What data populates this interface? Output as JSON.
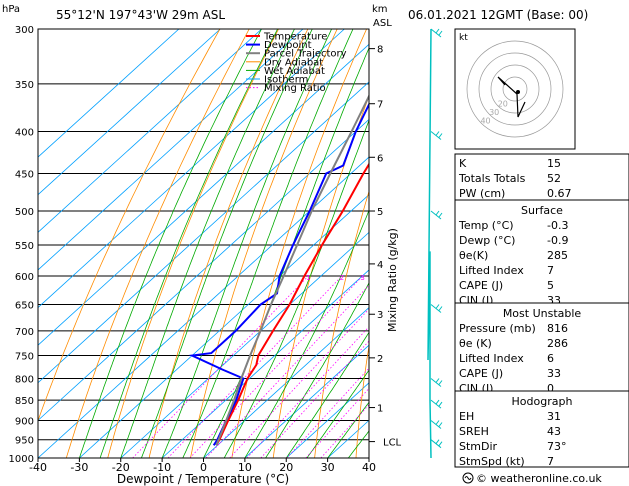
{
  "header": {
    "location": "55°12'N  197°43'W  29m  ASL",
    "hpa_label": "hPa",
    "km_label": "km",
    "asl_label": "ASL",
    "datetime": "06.01.2021  12GMT  (Base: 00)",
    "footer": "© weatheronline.co.uk"
  },
  "colors": {
    "temperature": "#ff0000",
    "dewpoint": "#0000ff",
    "parcel": "#808080",
    "dry_adiabat": "#ff8c00",
    "wet_adiabat": "#00aa00",
    "isotherm": "#00a0ff",
    "mixing_ratio": "#ff00ff",
    "wind": "#00c0c0"
  },
  "chart_data": {
    "type": "skew-t",
    "xlabel": "Dewpoint / Temperature (°C)",
    "y2label": "Mixing Ratio (g/kg)",
    "xlim": [
      -40,
      40
    ],
    "ylim": [
      1000,
      300
    ],
    "y_log_scale": true,
    "x_ticks": [
      -40,
      -30,
      -20,
      -10,
      0,
      10,
      20,
      30,
      40
    ],
    "pressure_ticks": [
      300,
      350,
      400,
      450,
      500,
      550,
      600,
      650,
      700,
      750,
      800,
      850,
      900,
      950,
      1000
    ],
    "km_ticks": [
      {
        "label": "8",
        "p": 317
      },
      {
        "label": "7",
        "p": 370
      },
      {
        "label": "6",
        "p": 430
      },
      {
        "label": "5",
        "p": 500
      },
      {
        "label": "4",
        "p": 580
      },
      {
        "label": "3",
        "p": 668
      },
      {
        "label": "2",
        "p": 755
      },
      {
        "label": "1",
        "p": 868
      },
      {
        "label": "LCL",
        "p": 955
      }
    ],
    "mixing_ratio_labels": [
      "1",
      "2",
      "3",
      "4",
      "6",
      "8",
      "10",
      "15",
      "20",
      "25"
    ],
    "legend": [
      "Temperature",
      "Dewpoint",
      "Parcel Trajectory",
      "Dry Adiabat",
      "Wet Adiabat",
      "Isotherm",
      "Mixing Ratio"
    ],
    "series": [
      {
        "name": "Temperature",
        "p": [
          965,
          950,
          900,
          850,
          800,
          770,
          750,
          700,
          650,
          600,
          550,
          500,
          450,
          400,
          350,
          300
        ],
        "t": [
          -0.3,
          -1,
          -4,
          -7,
          -10.5,
          -12,
          -14,
          -17,
          -20,
          -24,
          -28,
          -32,
          -37,
          -42,
          -48,
          -54
        ]
      },
      {
        "name": "Dewpoint",
        "p": [
          965,
          950,
          900,
          850,
          800,
          780,
          750,
          745,
          700,
          650,
          630,
          600,
          550,
          500,
          450,
          440,
          400,
          350,
          320,
          300
        ],
        "t": [
          -0.9,
          -1.5,
          -4.5,
          -7.5,
          -11.5,
          -19,
          -30,
          -26,
          -26,
          -27,
          -26,
          -30,
          -35,
          -40,
          -46,
          -44,
          -50,
          -57,
          -57,
          -59
        ]
      },
      {
        "name": "Parcel Trajectory",
        "p": [
          965,
          950,
          900,
          850,
          800,
          750,
          700,
          650,
          600,
          550,
          500,
          450,
          400,
          350,
          300
        ],
        "t": [
          -0.3,
          -1.2,
          -4.5,
          -8,
          -12,
          -16,
          -20,
          -24.5,
          -29,
          -34,
          -39.5,
          -45,
          -51,
          -58,
          -66
        ]
      }
    ],
    "wind_barbs_p": [
      300,
      400,
      500,
      650,
      800,
      850,
      900,
      950
    ]
  },
  "hodograph": {
    "unit_label": "kt",
    "ring_labels": [
      "20",
      "30",
      "40"
    ]
  },
  "indices": {
    "rows": [
      {
        "label": "K",
        "value": "15"
      },
      {
        "label": "Totals Totals",
        "value": "52"
      },
      {
        "label": "PW (cm)",
        "value": "0.67"
      }
    ]
  },
  "surface": {
    "title": "Surface",
    "rows": [
      {
        "label": "Temp (°C)",
        "value": "-0.3"
      },
      {
        "label": "Dewp (°C)",
        "value": "-0.9"
      },
      {
        "label": "θe(K)",
        "value": "285"
      },
      {
        "label": "Lifted Index",
        "value": "7"
      },
      {
        "label": "CAPE (J)",
        "value": "5"
      },
      {
        "label": "CIN (J)",
        "value": "33"
      }
    ]
  },
  "most_unstable": {
    "title": "Most Unstable",
    "rows": [
      {
        "label": "Pressure (mb)",
        "value": "816"
      },
      {
        "label": "θe (K)",
        "value": "286"
      },
      {
        "label": "Lifted Index",
        "value": "6"
      },
      {
        "label": "CAPE (J)",
        "value": "33"
      },
      {
        "label": "CIN (J)",
        "value": "0"
      }
    ]
  },
  "hodograph_table": {
    "title": "Hodograph",
    "rows": [
      {
        "label": "EH",
        "value": "31"
      },
      {
        "label": "SREH",
        "value": "43"
      },
      {
        "label": "StmDir",
        "value": "73°"
      },
      {
        "label": "StmSpd (kt)",
        "value": "7"
      }
    ]
  }
}
